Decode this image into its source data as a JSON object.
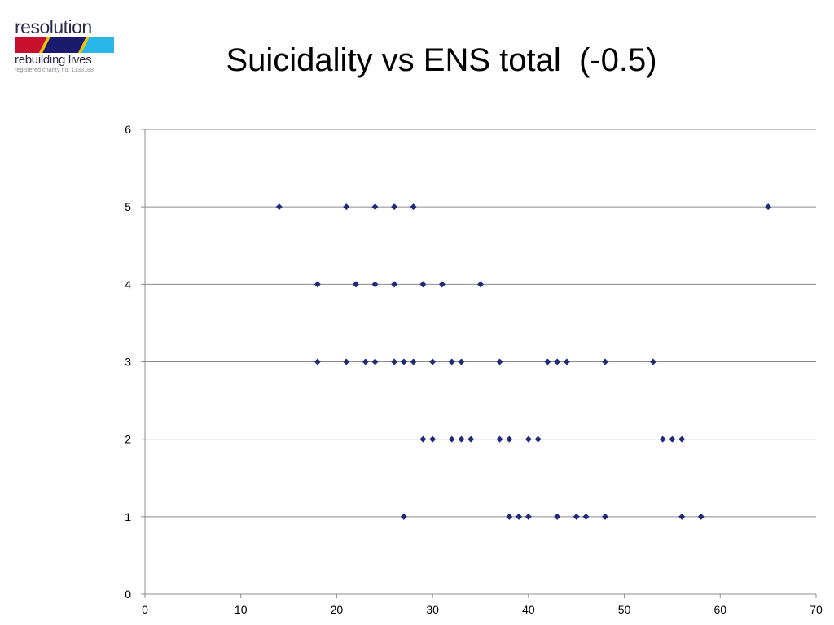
{
  "logo": {
    "name": "resolution",
    "tagline": "rebuilding lives",
    "charity": "registered charity no. 1133188",
    "colors": [
      "#c8102e",
      "#1a1a6e",
      "#29b6e8",
      "#f2c200"
    ]
  },
  "chart_data": {
    "type": "scatter",
    "title": "Suicidality vs ENS total  (-0.5)",
    "xlabel": "",
    "ylabel": "",
    "xlim": [
      0,
      70
    ],
    "ylim": [
      0,
      6
    ],
    "xticks": [
      0,
      10,
      20,
      30,
      40,
      50,
      60,
      70
    ],
    "yticks": [
      0,
      1,
      2,
      3,
      4,
      5,
      6
    ],
    "grid": "horizontal",
    "marker_color": "#1f2a7a",
    "marker": "diamond",
    "series": [
      {
        "points": [
          [
            14,
            5
          ],
          [
            21,
            5
          ],
          [
            24,
            5
          ],
          [
            26,
            5
          ],
          [
            28,
            5
          ],
          [
            65,
            5
          ],
          [
            18,
            4
          ],
          [
            22,
            4
          ],
          [
            24,
            4
          ],
          [
            26,
            4
          ],
          [
            29,
            4
          ],
          [
            31,
            4
          ],
          [
            35,
            4
          ],
          [
            18,
            3
          ],
          [
            21,
            3
          ],
          [
            23,
            3
          ],
          [
            24,
            3
          ],
          [
            26,
            3
          ],
          [
            27,
            3
          ],
          [
            28,
            3
          ],
          [
            30,
            3
          ],
          [
            32,
            3
          ],
          [
            33,
            3
          ],
          [
            37,
            3
          ],
          [
            42,
            3
          ],
          [
            43,
            3
          ],
          [
            44,
            3
          ],
          [
            48,
            3
          ],
          [
            53,
            3
          ],
          [
            29,
            2
          ],
          [
            30,
            2
          ],
          [
            32,
            2
          ],
          [
            33,
            2
          ],
          [
            34,
            2
          ],
          [
            37,
            2
          ],
          [
            38,
            2
          ],
          [
            40,
            2
          ],
          [
            41,
            2
          ],
          [
            54,
            2
          ],
          [
            55,
            2
          ],
          [
            56,
            2
          ],
          [
            27,
            1
          ],
          [
            38,
            1
          ],
          [
            39,
            1
          ],
          [
            40,
            1
          ],
          [
            43,
            1
          ],
          [
            45,
            1
          ],
          [
            46,
            1
          ],
          [
            48,
            1
          ],
          [
            56,
            1
          ],
          [
            58,
            1
          ]
        ]
      }
    ]
  }
}
